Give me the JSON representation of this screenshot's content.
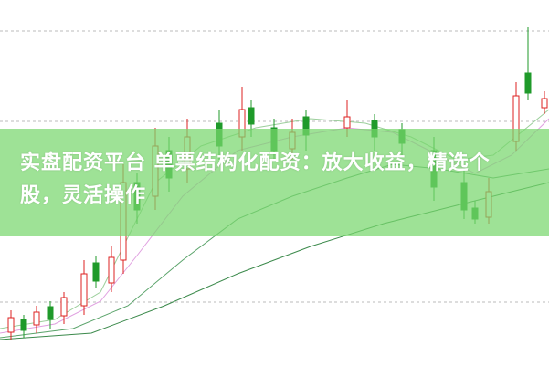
{
  "banner": {
    "title": "实盘配资平台 单票结构化配资：放大收益，精选个股，灵活操作"
  }
}
